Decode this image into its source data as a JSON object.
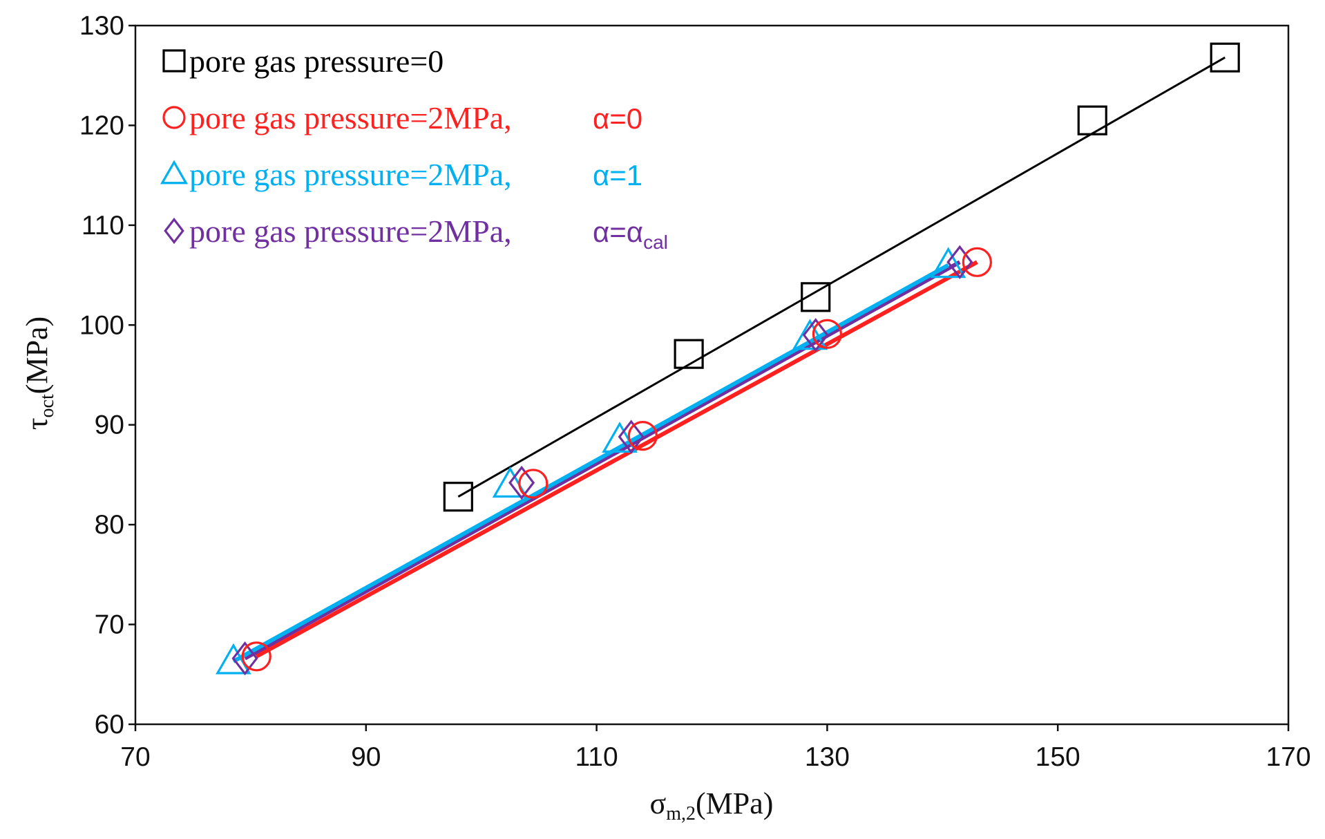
{
  "chart_data": {
    "type": "scatter",
    "xlabel": {
      "main": "σ",
      "sub": "m,2",
      "unit": "(MPa)"
    },
    "ylabel": {
      "main": "τ",
      "sub": "oct",
      "unit": "(MPa)"
    },
    "xlim": [
      70,
      170
    ],
    "ylim": [
      60,
      130
    ],
    "xticks": [
      70,
      90,
      110,
      130,
      150,
      170
    ],
    "yticks": [
      60,
      70,
      80,
      90,
      100,
      110,
      120,
      130
    ],
    "grid": false,
    "legend_position": "top-left",
    "series": [
      {
        "name": "pore gas pressure=0",
        "alpha_label": "",
        "alpha_sub": "",
        "marker": "square",
        "color": "#000000",
        "points": [
          [
            98,
            82.8
          ],
          [
            118,
            97.1
          ],
          [
            129,
            102.8
          ],
          [
            153,
            120.5
          ],
          [
            164.5,
            126.8
          ]
        ],
        "fit": [
          [
            98,
            82.8
          ],
          [
            164.5,
            126.8
          ]
        ]
      },
      {
        "name": "pore gas pressure=2MPa,",
        "alpha_label": "α=0",
        "alpha_sub": "",
        "marker": "circle",
        "color": "#ff2020",
        "points": [
          [
            80.5,
            66.8
          ],
          [
            104.5,
            84.1
          ],
          [
            114,
            88.9
          ],
          [
            130,
            99.1
          ],
          [
            143,
            106.3
          ]
        ],
        "fit": [
          [
            80.5,
            66.8
          ],
          [
            143,
            106.3
          ]
        ]
      },
      {
        "name": "pore gas pressure=2MPa,",
        "alpha_label": "α=1",
        "alpha_sub": "",
        "marker": "triangle",
        "color": "#00b0f0",
        "points": [
          [
            78.5,
            66.3
          ],
          [
            102.5,
            84.0
          ],
          [
            112,
            88.5
          ],
          [
            128.5,
            98.8
          ],
          [
            140.5,
            106.0
          ]
        ],
        "fit": [
          [
            78.5,
            66.3
          ],
          [
            140.5,
            106.0
          ]
        ]
      },
      {
        "name": "pore gas pressure=2MPa,",
        "alpha_label": "α=α",
        "alpha_sub": "cal",
        "marker": "diamond",
        "color": "#7030a0",
        "points": [
          [
            79.5,
            66.6
          ],
          [
            103.5,
            84.2
          ],
          [
            113,
            88.8
          ],
          [
            129,
            99.0
          ],
          [
            141.5,
            106.3
          ]
        ],
        "fit": [
          [
            79.5,
            66.6
          ],
          [
            141.5,
            106.3
          ]
        ]
      }
    ]
  }
}
